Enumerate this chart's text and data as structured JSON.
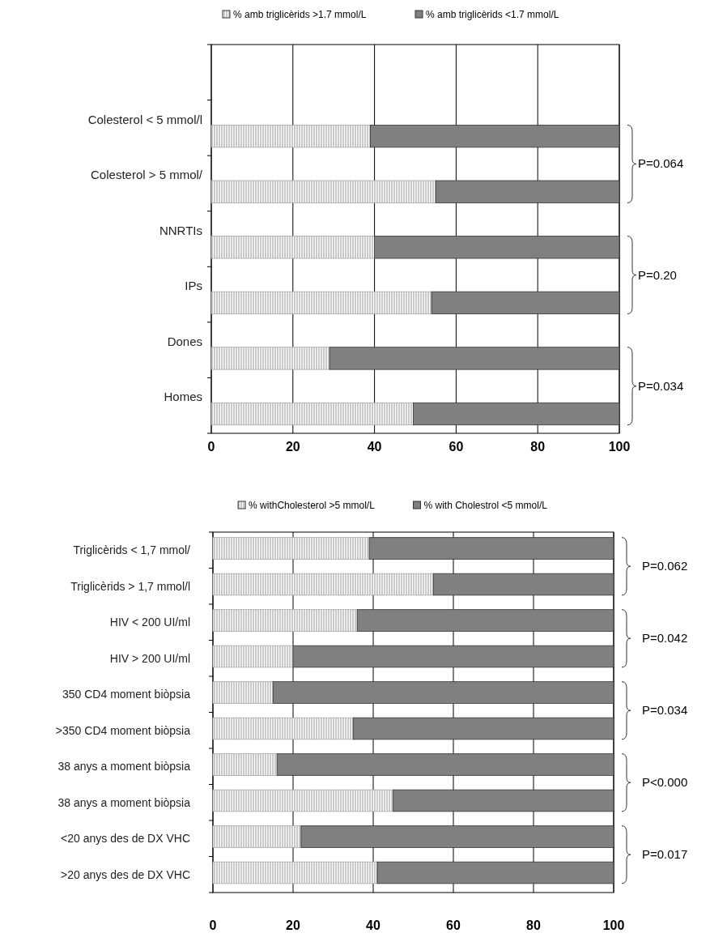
{
  "chart_data": [
    {
      "type": "bar",
      "orientation": "horizontal",
      "stacked": true,
      "categories": [
        null,
        "Colesterol < 5 mmol/l",
        "Colesterol > 5 mmol/",
        "NNRTIs",
        "IPs",
        "Dones",
        "Homes"
      ],
      "series": [
        {
          "name": "% amb triglicèrids >1.7 mmol/L",
          "color": "#a6a6a6",
          "values": [
            null,
            39,
            55,
            40,
            54,
            29,
            49.5
          ]
        },
        {
          "name": "% amb triglicèrids <1.7 mmol/L",
          "color": "#808080",
          "values": [
            null,
            61,
            45,
            60,
            46,
            71,
            50.5
          ]
        }
      ],
      "xlim": [
        0,
        100
      ],
      "xticks": [
        0,
        20,
        40,
        60,
        80,
        100
      ],
      "grid": "x",
      "legend": "top",
      "annotations": [
        "P=0.064",
        "P=0.20",
        "P=0.034"
      ]
    },
    {
      "type": "bar",
      "orientation": "horizontal",
      "stacked": true,
      "categories": [
        "Triglicèrids < 1,7 mmol/",
        "Triglicèrids > 1,7 mmol/l",
        "HIV < 200 UI/ml",
        "HIV > 200 UI/ml",
        "350 CD4 moment biòpsia",
        ">350 CD4 moment biòpsia",
        "38 anys a moment biòpsia",
        "38 anys a moment biòpsia",
        "<20 anys des de DX VHC",
        ">20 anys des de DX VHC"
      ],
      "series": [
        {
          "name": "% withCholesterol >5 mmol/L",
          "color": "#a6a6a6",
          "values": [
            39,
            55,
            36,
            20,
            15,
            35,
            16,
            45,
            22,
            41
          ]
        },
        {
          "name": "% with Cholestrol <5 mmol/L",
          "color": "#808080",
          "values": [
            61,
            45,
            64,
            80,
            85,
            65,
            84,
            55,
            78,
            59
          ]
        }
      ],
      "xlim": [
        0,
        100
      ],
      "xticks": [
        0,
        20,
        40,
        60,
        80,
        100
      ],
      "grid": "x",
      "legend": "top",
      "annotations": [
        "P=0.062",
        "P=0.042",
        "P=0.034",
        "P<0.000",
        "P=0.017"
      ]
    }
  ]
}
